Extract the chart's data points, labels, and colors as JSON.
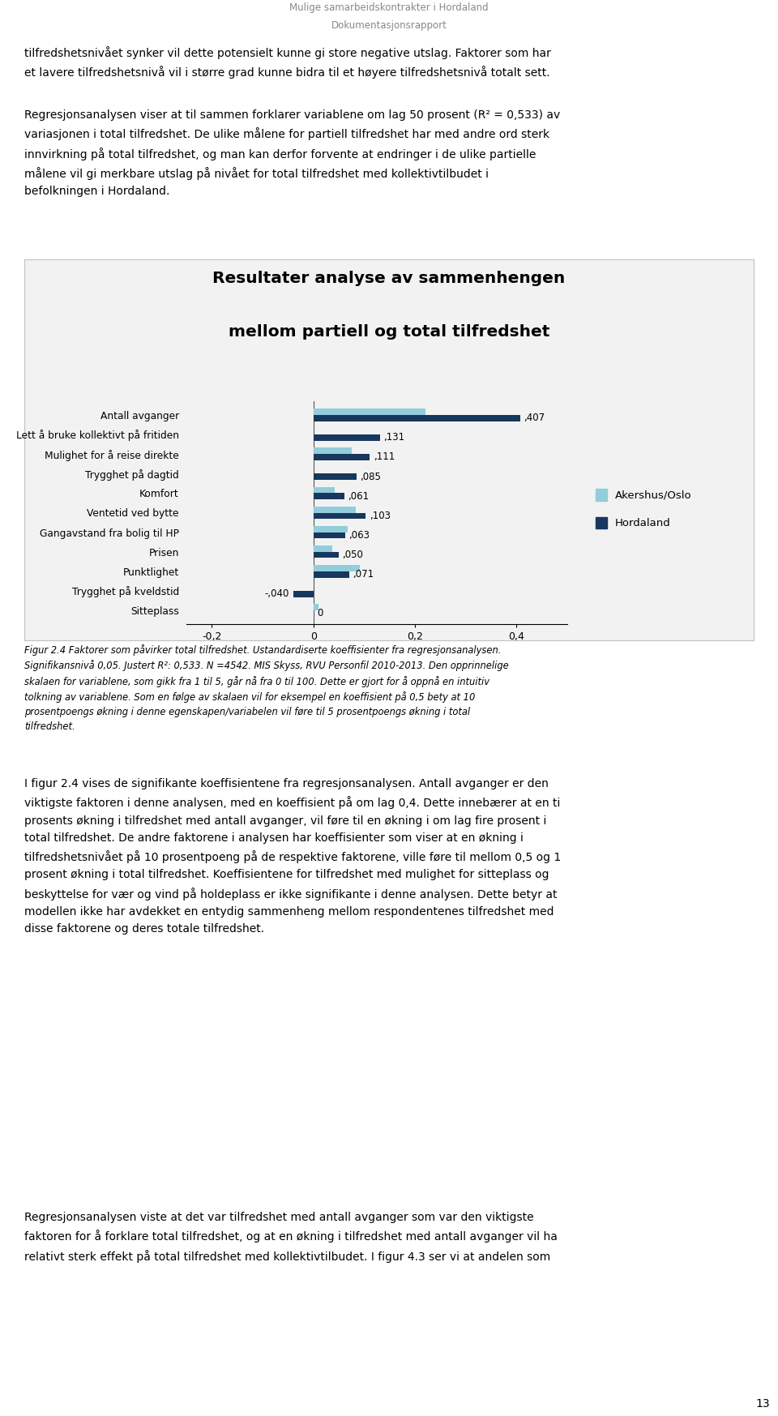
{
  "header_line1": "Mulige samarbeidskontrakter i Hordaland",
  "header_line2": "Dokumentasjonsrapport",
  "page_number": "13",
  "para1": "tilfredshetsnivået synker vil dette potensielt kunne gi store negative utslag. Faktorer som har\net lavere tilfredshetsnivå vil i større grad kunne bidra til et høyere tilfredshetsnivå totalt sett.",
  "para2": "Regresjonsanalysen viser at til sammen forklarer variablene om lag 50 prosent (R² = 0,533) av\nvariasjonen i total tilfredshet. De ulike målene for partiell tilfredshet har med andre ord sterk\ninnvirkning på total tilfredshet, og man kan derfor forvente at endringer i de ulike partielle\nmålene vil gi merkbare utslag på nivået for total tilfredshet med kollektivtilbudet i\nbefolkningen i Hordaland.",
  "chart_title_line1": "Resultater analyse av sammenhengen",
  "chart_title_line2": "mellom partiell og total tilfredshet",
  "categories": [
    "Antall avganger",
    "Lett å bruke kollektivt på fritiden",
    "Mulighet for å reise direkte",
    "Trygghet på dagtid",
    "Komfort",
    "Ventetid ved bytte",
    "Gangavstand fra bolig til HP",
    "Prisen",
    "Punktlighet",
    "Trygghet på kveldstid",
    "Sitteplass"
  ],
  "akershus_values": [
    0.22,
    null,
    0.075,
    null,
    0.042,
    0.083,
    0.068,
    0.038,
    0.092,
    null,
    0.01
  ],
  "hordaland_values": [
    0.407,
    0.131,
    0.111,
    0.085,
    0.061,
    0.103,
    0.063,
    0.05,
    0.071,
    -0.04,
    0.0
  ],
  "bar_labels_hordaland": [
    ",407",
    ",131",
    ",111",
    ",085",
    ",061",
    ",103",
    ",063",
    ",050",
    ",071",
    "-,040",
    "0"
  ],
  "color_akershus": "#92cddc",
  "color_hordaland": "#17375e",
  "legend_akershus": "Akershus/Oslo",
  "legend_hordaland": "Hordaland",
  "xlim": [
    -0.25,
    0.5
  ],
  "xticks": [
    -0.2,
    0.0,
    0.2,
    0.4
  ],
  "xticklabels": [
    "-0,2",
    "0",
    "0,2",
    "0,4"
  ],
  "caption_text": "Figur 2.4 Faktorer som påvirker total tilfredshet. Ustandardiserte koeffisienter fra regresjonsanalysen.\nSignifikansnivå 0,05. Justert R²: 0,533. N =4542. MIS Skyss, RVU Personfil 2010-2013. Den opprinnelige\nskalaen for variablene, som gikk fra 1 til 5, går nå fra 0 til 100. Dette er gjort for å oppnå en intuitiv\ntolkning av variablene. Som en følge av skalaen vil for eksempel en koeffisient på 0,5 bety at 10\nprosentpoengs økning i denne egenskapen/variabelen vil føre til 5 prosentpoengs økning i total\ntilfredshet.",
  "body_text": "I figur 2.4 vises de signifikante koeffisientene fra regresjonsanalysen. Antall avganger er den\nviktigste faktoren i denne analysen, med en koeffisient på om lag 0,4. Dette innebærer at en ti\nprosents økning i tilfredshet med antall avganger, vil føre til en økning i om lag fire prosent i\ntotal tilfredshet. De andre faktorene i analysen har koeffisienter som viser at en økning i\ntilfredshetsnivået på 10 prosentpoeng på de respektive faktorene, ville føre til mellom 0,5 og 1\nprosent økning i total tilfredshet. Koeffisientene for tilfredshet med mulighet for sitteplass og\nbeskyttelse for vær og vind på holdeplass er ikke signifikante i denne analysen. Dette betyr at\nmodellen ikke har avdekket en entydig sammenheng mellom respondentenes tilfredshet med\ndisse faktorene og deres totale tilfredshet.",
  "body_text2": "Regresjonsanalysen viste at det var tilfredshet med antall avganger som var den viktigste\nfaktoren for å forklare total tilfredshet, og at en økning i tilfredshet med antall avganger vil ha\nrelativt sterk effekt på total tilfredshet med kollektivtilbudet. I figur 4.3 ser vi at andelen som"
}
